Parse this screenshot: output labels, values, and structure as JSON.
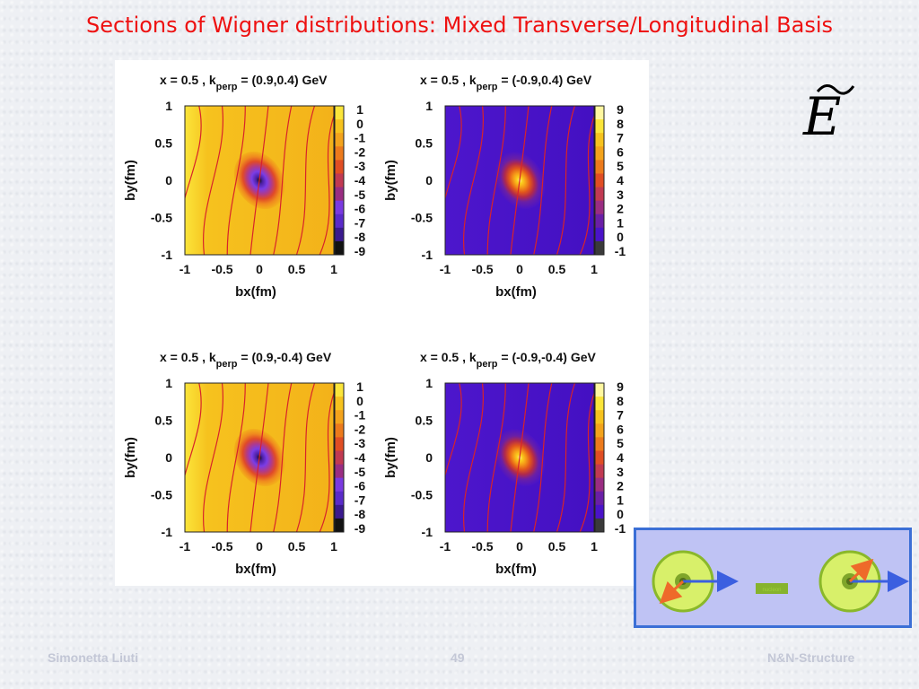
{
  "slide": {
    "title": "Sections of Wigner distributions: Mixed Transverse/Longitudinal Basis",
    "footer_left": "Simonetta Liuti",
    "footer_center": "49",
    "footer_right": "N&N-Structure",
    "inset_label": "nucleon"
  },
  "colors": {
    "title": "#ee1111",
    "inset_bg": "#bfc3f4",
    "inset_border": "#3b6fd6"
  },
  "chart_data": [
    {
      "type": "heatmap",
      "title_prefix": "x = 0.5 , k",
      "title_sub": "perp",
      "title_suffix": " = (0.9,0.4) GeV",
      "xlabel": "bx(fm)",
      "ylabel": "by(fm)",
      "xlim": [
        -1,
        1
      ],
      "ylim": [
        -1,
        1
      ],
      "xticks": [
        "-1",
        "-0.5",
        "0",
        "0.5",
        "1"
      ],
      "yticks": [
        "1",
        "0.5",
        "0",
        "-0.5",
        "-1"
      ],
      "colorbar_ticks": [
        "1",
        "0",
        "-1",
        "-2",
        "-3",
        "-4",
        "-5",
        "-6",
        "-7",
        "-8",
        "-9"
      ],
      "colorbar_range": [
        -9,
        1
      ],
      "background_value": 0.5,
      "peak_value": -9,
      "peak_center": [
        0,
        0
      ],
      "contour_lines": true
    },
    {
      "type": "heatmap",
      "title_prefix": "x = 0.5 , k",
      "title_sub": "perp",
      "title_suffix": " = (-0.9,0.4) GeV",
      "xlabel": "bx(fm)",
      "ylabel": "by(fm)",
      "xlim": [
        -1,
        1
      ],
      "ylim": [
        -1,
        1
      ],
      "xticks": [
        "-1",
        "-0.5",
        "0",
        "0.5",
        "1"
      ],
      "yticks": [
        "1",
        "0.5",
        "0",
        "-0.5",
        "-1"
      ],
      "colorbar_ticks": [
        "9",
        "8",
        "7",
        "6",
        "5",
        "4",
        "3",
        "2",
        "1",
        "0",
        "-1"
      ],
      "colorbar_range": [
        -1,
        9
      ],
      "background_value": -0.5,
      "peak_value": 9,
      "peak_center": [
        0,
        0
      ],
      "contour_lines": true
    },
    {
      "type": "heatmap",
      "title_prefix": "x = 0.5 , k",
      "title_sub": "perp",
      "title_suffix": " = (0.9,-0.4) GeV",
      "xlabel": "bx(fm)",
      "ylabel": "by(fm)",
      "xlim": [
        -1,
        1
      ],
      "ylim": [
        -1,
        1
      ],
      "xticks": [
        "-1",
        "-0.5",
        "0",
        "0.5",
        "1"
      ],
      "yticks": [
        "1",
        "0.5",
        "0",
        "-0.5",
        "-1"
      ],
      "colorbar_ticks": [
        "1",
        "0",
        "-1",
        "-2",
        "-3",
        "-4",
        "-5",
        "-6",
        "-7",
        "-8",
        "-9"
      ],
      "colorbar_range": [
        -9,
        1
      ],
      "background_value": 0.5,
      "peak_value": -9,
      "peak_center": [
        0,
        0
      ],
      "contour_lines": true
    },
    {
      "type": "heatmap",
      "title_prefix": "x = 0.5 , k",
      "title_sub": "perp",
      "title_suffix": " = (-0.9,-0.4) GeV",
      "xlabel": "bx(fm)",
      "ylabel": "by(fm)",
      "xlim": [
        -1,
        1
      ],
      "ylim": [
        -1,
        1
      ],
      "xticks": [
        "-1",
        "-0.5",
        "0",
        "0.5",
        "1"
      ],
      "yticks": [
        "1",
        "0.5",
        "0",
        "-0.5",
        "-1"
      ],
      "colorbar_ticks": [
        "9",
        "8",
        "7",
        "6",
        "5",
        "4",
        "3",
        "2",
        "1",
        "0",
        "-1"
      ],
      "colorbar_range": [
        -1,
        9
      ],
      "background_value": -0.5,
      "peak_value": 9,
      "peak_center": [
        0,
        0
      ],
      "contour_lines": true
    }
  ]
}
